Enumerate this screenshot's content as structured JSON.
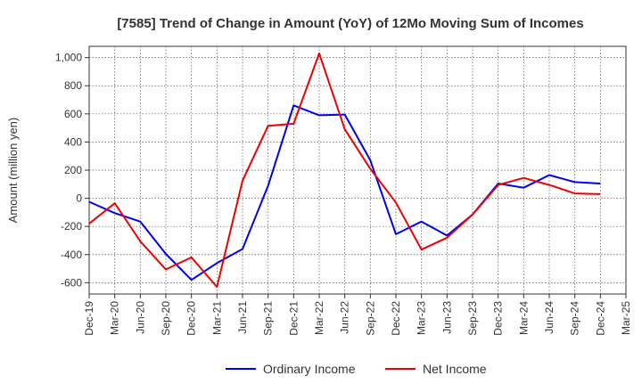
{
  "chart_data": {
    "type": "line",
    "title": "[7585]  Trend of Change in Amount (YoY) of 12Mo Moving Sum of Incomes",
    "xlabel": "",
    "ylabel": "Amount (million yen)",
    "ylim": [
      -680,
      1080
    ],
    "yticks": [
      -600,
      -400,
      -200,
      0,
      200,
      400,
      600,
      800,
      1000
    ],
    "ytick_labels": [
      "-600",
      "-400",
      "-200",
      "0",
      "200",
      "400",
      "600",
      "800",
      "1,000"
    ],
    "categories": [
      "Dec-19",
      "Mar-20",
      "Jun-20",
      "Sep-20",
      "Dec-20",
      "Mar-21",
      "Jun-21",
      "Sep-21",
      "Dec-21",
      "Mar-22",
      "Jun-22",
      "Sep-22",
      "Dec-22",
      "Mar-23",
      "Jun-23",
      "Sep-23",
      "Dec-23",
      "Mar-24",
      "Jun-24",
      "Sep-24",
      "Dec-24",
      "Mar-25"
    ],
    "grid": true,
    "legend_position": "bottom",
    "series": [
      {
        "name": "Ordinary Income",
        "color": "#0000ee",
        "values": [
          -25,
          -105,
          -165,
          -395,
          -580,
          -460,
          -360,
          90,
          660,
          590,
          595,
          270,
          -255,
          -165,
          -265,
          -115,
          105,
          75,
          165,
          115,
          105,
          null
        ]
      },
      {
        "name": "Net Income",
        "color": "#ee0000",
        "values": [
          -180,
          -35,
          -305,
          -505,
          -420,
          -630,
          125,
          515,
          530,
          1030,
          490,
          210,
          -30,
          -365,
          -280,
          -115,
          95,
          145,
          95,
          35,
          30,
          null
        ]
      }
    ]
  }
}
